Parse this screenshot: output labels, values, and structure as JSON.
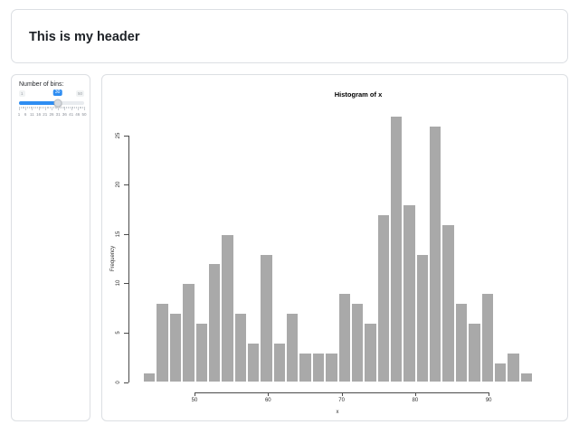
{
  "header": {
    "title": "This is my header"
  },
  "sidebar": {
    "bins_label": "Number of bins:",
    "slider": {
      "min": "1",
      "max": "50",
      "value": "30",
      "value_pct": 59.2,
      "accent": "#2e8df2",
      "tick_labels": [
        "1",
        "6",
        "11",
        "16",
        "21",
        "26",
        "31",
        "36",
        "41",
        "46",
        "50"
      ]
    }
  },
  "chart_data": {
    "type": "bar",
    "subtype": "histogram",
    "title": "Histogram of x",
    "xlabel": "x",
    "ylabel": "Frequency",
    "bin_start": 43,
    "bin_end": 96,
    "bins": 30,
    "bin_width": 1.76667,
    "counts": [
      1,
      8,
      7,
      10,
      6,
      12,
      15,
      7,
      4,
      13,
      4,
      7,
      3,
      3,
      3,
      9,
      8,
      6,
      17,
      27,
      18,
      13,
      26,
      16,
      8,
      6,
      9,
      2,
      3,
      1
    ],
    "x_ticks": [
      50,
      60,
      70,
      80,
      90
    ],
    "y_ticks": [
      0,
      5,
      10,
      15,
      20,
      25
    ],
    "xlim": [
      43,
      96
    ],
    "ylim": [
      0,
      27
    ],
    "grid": false,
    "legend": false,
    "bar_fill": "#a9a9a9",
    "bar_border": "#ffffff"
  }
}
